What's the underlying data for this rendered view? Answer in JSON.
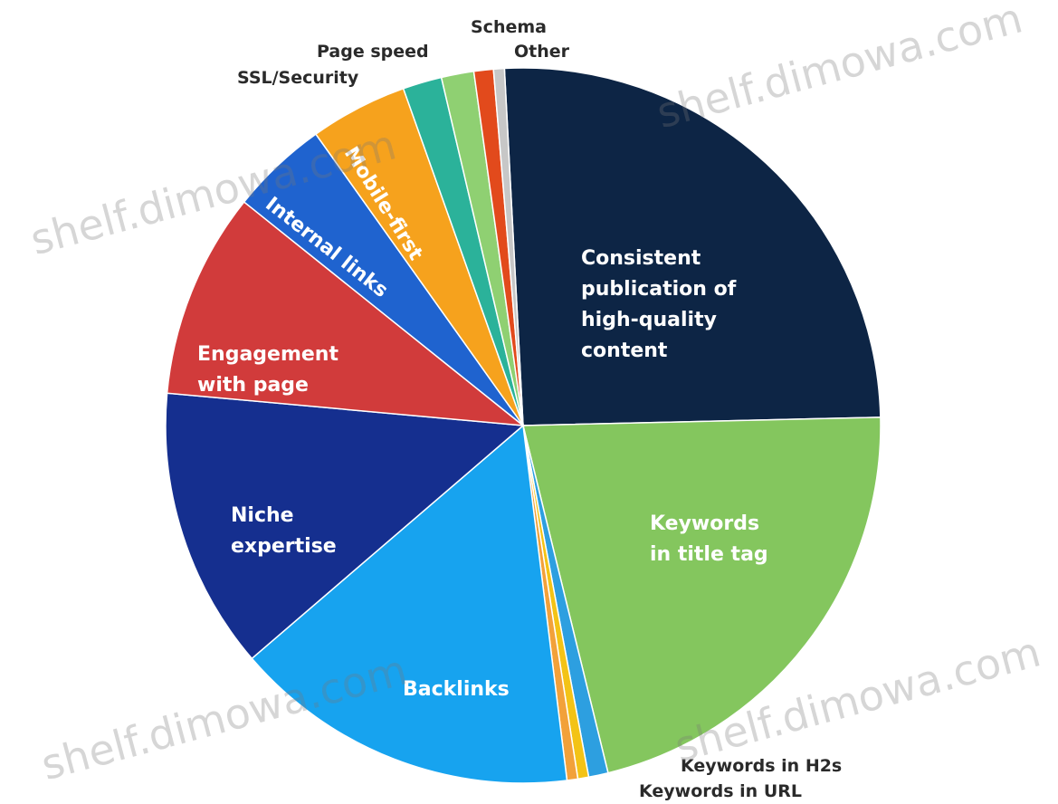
{
  "chart_data": {
    "type": "pie",
    "title": "",
    "slices": [
      {
        "label": "Consistent publication of high-quality content",
        "value": 26,
        "color": "#0d2545",
        "text_color": "#ffffff"
      },
      {
        "label": "Keywords in title tag",
        "value": 22,
        "color": "#84c65e",
        "text_color": "#ffffff"
      },
      {
        "label": "",
        "value": 0.9,
        "color": "#2d9fe0",
        "text_color": "#ffffff"
      },
      {
        "label": "Keywords in H2s",
        "value": 0.5,
        "color": "#f3c316",
        "text_color": "#2a2a2a"
      },
      {
        "label": "Keywords in URL",
        "value": 0.5,
        "color": "#f2a13a",
        "text_color": "#2a2a2a"
      },
      {
        "label": "Backlinks",
        "value": 16,
        "color": "#17a3ef",
        "text_color": "#ffffff"
      },
      {
        "label": "Niche expertise",
        "value": 13,
        "color": "#152f8f",
        "text_color": "#ffffff"
      },
      {
        "label": "Engagement with page",
        "value": 9.5,
        "color": "#d13b3b",
        "text_color": "#ffffff"
      },
      {
        "label": "Internal links",
        "value": 4.5,
        "color": "#1f63cf",
        "text_color": "#ffffff"
      },
      {
        "label": "Mobile-first",
        "value": 4.5,
        "color": "#f6a21d",
        "text_color": "#ffffff"
      },
      {
        "label": "Page speed",
        "value": 1.8,
        "color": "#2bb29a",
        "text_color": "#ffffff"
      },
      {
        "label": "SSL/Security",
        "value": 1.5,
        "color": "#8fd072",
        "text_color": "#ffffff"
      },
      {
        "label": "Schema",
        "value": 0.9,
        "color": "#e24a1c",
        "text_color": "#ffffff"
      },
      {
        "label": "Other",
        "value": 0.5,
        "color": "#c7c7c7",
        "text_color": "#ffffff"
      }
    ]
  },
  "labels": {
    "consistent": [
      "Consistent",
      "publication of",
      "high-quality",
      "content"
    ],
    "title_tag": [
      "Keywords",
      "in title tag"
    ],
    "backlinks": "Backlinks",
    "niche": [
      "Niche",
      "expertise"
    ],
    "engagement": [
      "Engagement",
      "with page"
    ],
    "internal": "Internal links",
    "mobile": "Mobile-first",
    "page_speed": "Page speed",
    "ssl": "SSL/Security",
    "schema": "Schema",
    "other": "Other",
    "h2s": "Keywords in H2s",
    "url": "Keywords in URL"
  },
  "watermark": "shelf.dimowa.com"
}
